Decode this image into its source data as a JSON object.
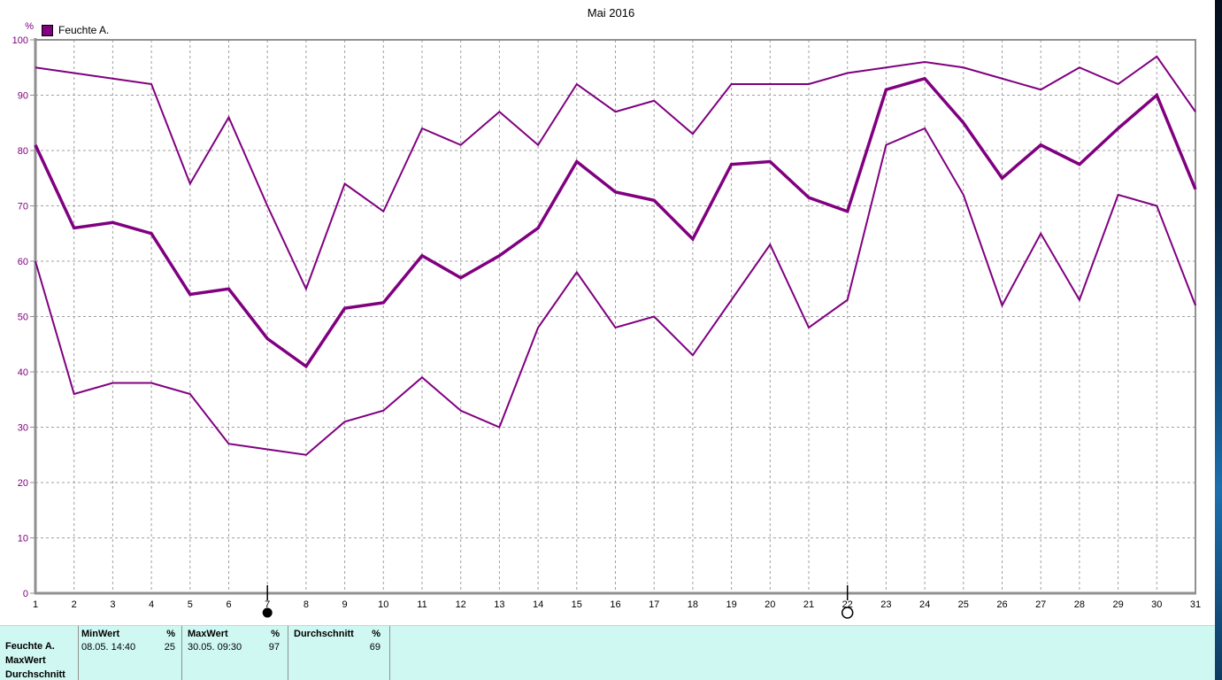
{
  "chart_data": {
    "type": "line",
    "title": "Mai 2016",
    "ylabel": "%",
    "ylim": [
      0,
      100
    ],
    "y_ticks": [
      0,
      10,
      20,
      30,
      40,
      50,
      60,
      70,
      80,
      90,
      100
    ],
    "grid": true,
    "legend_position": "top-left",
    "legend": [
      {
        "label": "Feuchte A.",
        "color": "#800080"
      }
    ],
    "x": [
      1,
      2,
      3,
      4,
      5,
      6,
      7,
      8,
      9,
      10,
      11,
      12,
      13,
      14,
      15,
      16,
      17,
      18,
      19,
      20,
      21,
      22,
      23,
      24,
      25,
      26,
      27,
      28,
      29,
      30,
      31
    ],
    "series": [
      {
        "name": "max",
        "style": "thin",
        "values": [
          95,
          94,
          93,
          92,
          74,
          86,
          70,
          55,
          74,
          69,
          84,
          81,
          87,
          81,
          92,
          87,
          89,
          83,
          92,
          92,
          92,
          94,
          95,
          96,
          95,
          93,
          91,
          95,
          92,
          97,
          87
        ]
      },
      {
        "name": "average",
        "style": "thick",
        "values": [
          81,
          66,
          67,
          65,
          54,
          55,
          46,
          41,
          51.5,
          52.5,
          61,
          57,
          61,
          66,
          78,
          72.5,
          71,
          64,
          77.5,
          78,
          71.5,
          69,
          91,
          93,
          85,
          75,
          81,
          77.5,
          84,
          90,
          73
        ]
      },
      {
        "name": "min",
        "style": "thin",
        "values": [
          60,
          36,
          38,
          38,
          36,
          27,
          26,
          25,
          31,
          33,
          39,
          33,
          30,
          48,
          58,
          48,
          50,
          43,
          53,
          63,
          48,
          53,
          81,
          84,
          72,
          52,
          65,
          53,
          72,
          70,
          52
        ]
      }
    ],
    "axis_markers": [
      {
        "x": 7,
        "symbol": "filled-circle"
      },
      {
        "x": 22,
        "symbol": "open-circle"
      }
    ]
  },
  "colors": {
    "line": "#800080",
    "y_label": "#800080",
    "x_label": "#000000",
    "axis": "#909090",
    "grid": "#a0a0a0",
    "table_bg": "#cff8f2"
  },
  "stats_table": {
    "series_column": [
      "Feuchte A.",
      "MaxWert",
      "Durchschnitt"
    ],
    "groups": [
      {
        "header": "MinWert",
        "unit": "%",
        "timestamp": "08.05. 14:40",
        "value": "25"
      },
      {
        "header": "MaxWert",
        "unit": "%",
        "timestamp": "30.05. 09:30",
        "value": "97"
      },
      {
        "header": "Durchschnitt",
        "unit": "%",
        "timestamp": "",
        "value": "69"
      }
    ]
  }
}
